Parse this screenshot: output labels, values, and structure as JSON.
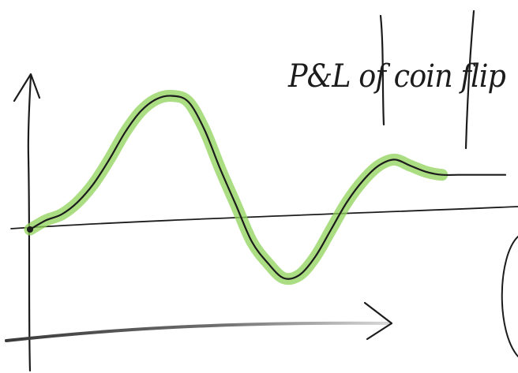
{
  "chart_data": {
    "type": "line",
    "title": "P&L of coin flip",
    "xlabel": "",
    "ylabel": "",
    "grid": false,
    "highlight_color": "#8fd15a",
    "line_color": "#1c1c1c",
    "x": [
      0,
      1,
      2,
      3,
      4,
      5,
      6,
      7,
      8,
      9,
      10,
      11,
      12,
      13,
      14,
      15,
      16,
      17,
      18,
      19,
      20,
      21,
      22,
      23,
      24,
      25,
      26,
      27,
      28,
      29,
      30
    ],
    "series": [
      {
        "values": [
          0.0,
          0.3,
          0.5,
          0.9,
          1.5,
          2.3,
          3.2,
          3.9,
          4.3,
          4.4,
          4.2,
          3.3,
          2.0,
          0.8,
          -0.4,
          -1.1,
          -1.6,
          -1.5,
          -0.9,
          0.0,
          0.9,
          1.6,
          2.1,
          2.3,
          2.1,
          1.9,
          1.8,
          1.8,
          1.8,
          1.8,
          1.8
        ]
      }
    ]
  }
}
